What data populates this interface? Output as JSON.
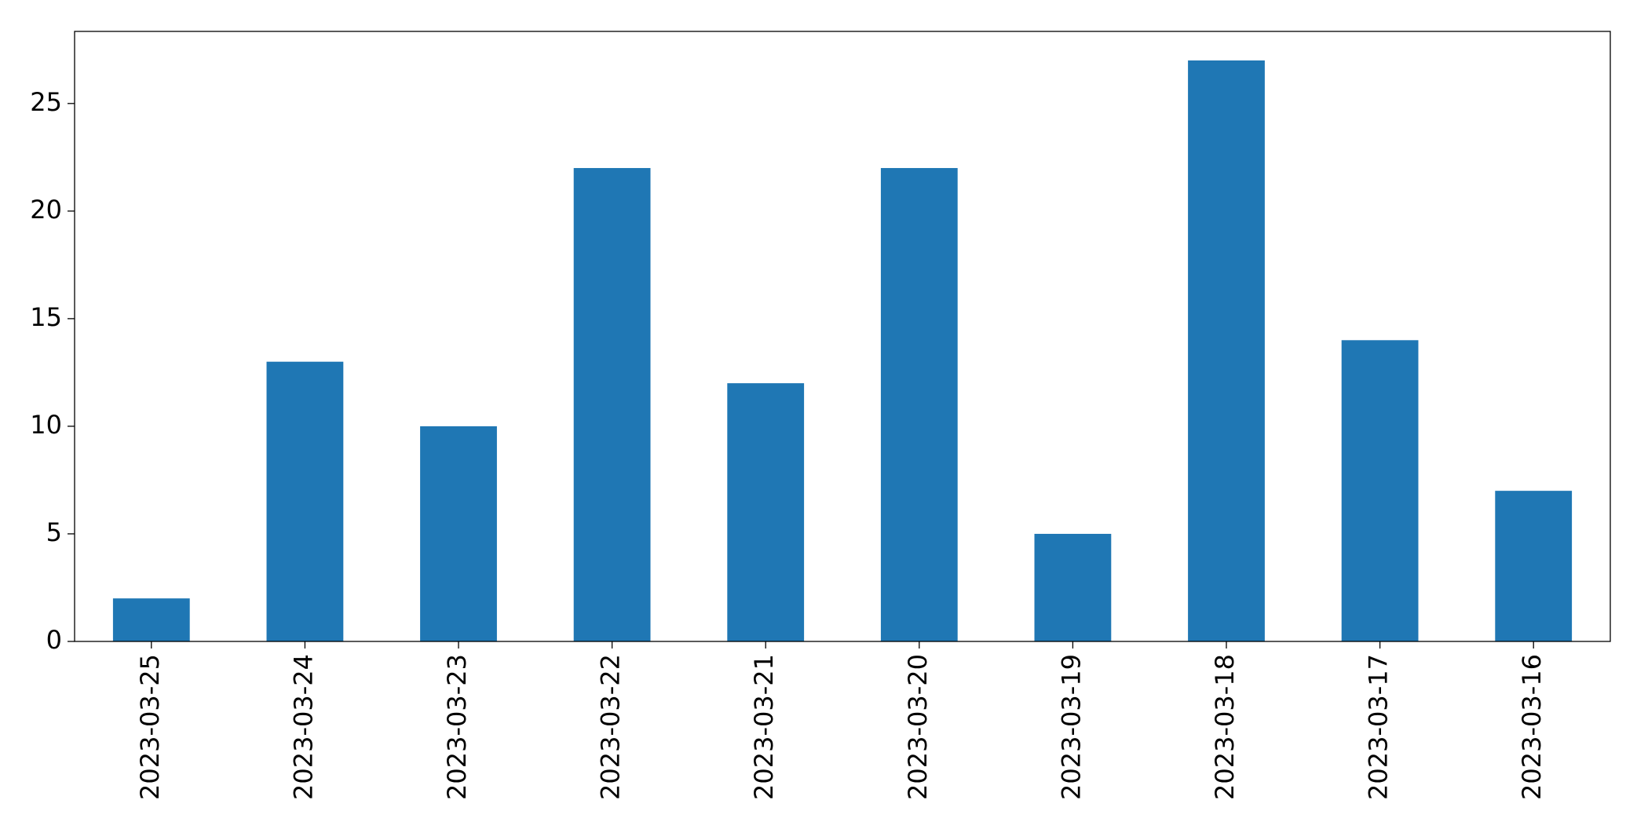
{
  "chart_data": {
    "type": "bar",
    "categories": [
      "2023-03-25",
      "2023-03-24",
      "2023-03-23",
      "2023-03-22",
      "2023-03-21",
      "2023-03-20",
      "2023-03-19",
      "2023-03-18",
      "2023-03-17",
      "2023-03-16"
    ],
    "values": [
      2,
      13,
      10,
      22,
      12,
      22,
      5,
      27,
      14,
      7
    ],
    "color": "#1f77b4",
    "ylim": [
      0,
      28.35
    ],
    "yticks": [
      0,
      5,
      10,
      15,
      20,
      25
    ],
    "grid": false
  }
}
